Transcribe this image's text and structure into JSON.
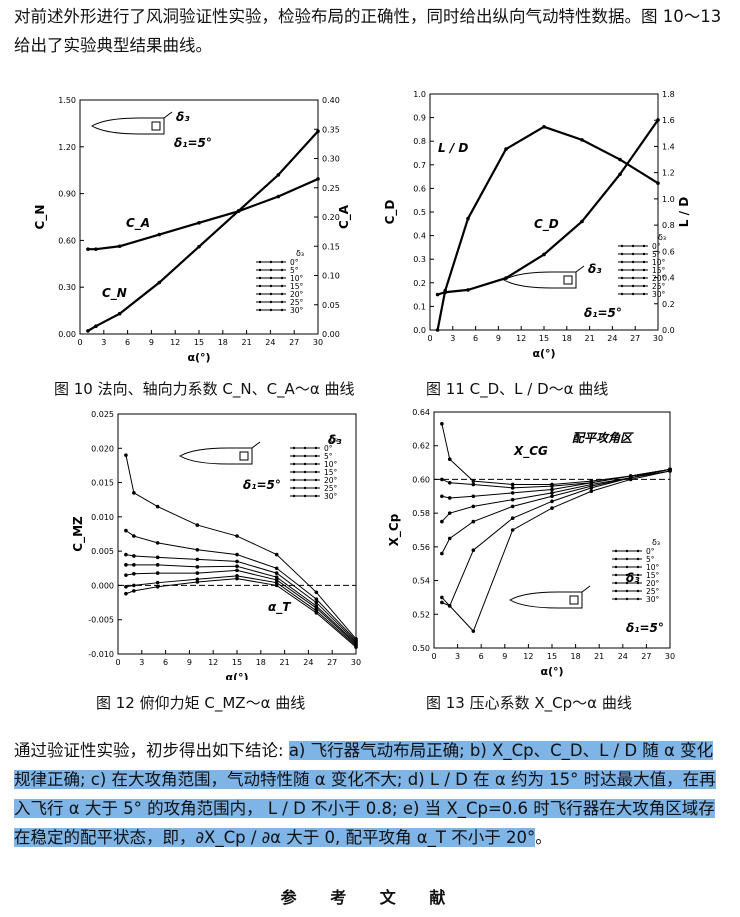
{
  "intro_paragraph": "对前述外形进行了风洞验证性实验，检验布局的正确性，同时给出纵向气动特性数据。图 10～13 给出了实验典型结果曲线。",
  "figures": [
    {
      "caption": "图 10  法向、轴向力系数 C_N、C_A～α 曲线",
      "chart_data": {
        "type": "line",
        "xlabel": "α(°)",
        "xticks": [
          "0",
          "3",
          "6",
          "9",
          "12",
          "15",
          "18",
          "21",
          "24",
          "27",
          "30"
        ],
        "xlim": [
          0,
          30
        ],
        "ylabel_left": "C_N",
        "ylim_left": [
          0,
          1.5
        ],
        "yticks_left": [
          "0.00",
          "0.30",
          "0.60",
          "0.90",
          "1.20",
          "1.50"
        ],
        "ylabel_right": "C_A",
        "ylim_right": [
          0,
          0.4
        ],
        "yticks_right": [
          "0.00",
          "0.05",
          "0.10",
          "0.15",
          "0.20",
          "0.25",
          "0.30",
          "0.35",
          "0.40"
        ],
        "annotations": [
          "C_A",
          "C_N",
          "δ₃",
          "δ₁=5°"
        ],
        "legend_title": "δ₃",
        "legend": [
          "0°",
          "5°",
          "10°",
          "15°",
          "20°",
          "25°",
          "30°"
        ],
        "series": [
          {
            "name": "C_N",
            "x": [
              1,
              2,
              5,
              10,
              15,
              20,
              25,
              30
            ],
            "y": [
              0.02,
              0.05,
              0.13,
              0.33,
              0.56,
              0.79,
              1.02,
              1.3
            ]
          },
          {
            "name": "C_A",
            "axis": "right",
            "x": [
              1,
              2,
              5,
              10,
              15,
              20,
              25,
              30
            ],
            "y": [
              0.145,
              0.145,
              0.15,
              0.17,
              0.19,
              0.21,
              0.235,
              0.265
            ]
          }
        ]
      }
    },
    {
      "caption": "图 11  C_D、L / D～α 曲线",
      "chart_data": {
        "type": "line",
        "xlabel": "α(°)",
        "xticks": [
          "0",
          "3",
          "6",
          "9",
          "12",
          "15",
          "18",
          "21",
          "24",
          "27",
          "30"
        ],
        "xlim": [
          0,
          30
        ],
        "ylabel_left": "C_D",
        "ylim_left": [
          0,
          1.0
        ],
        "yticks_left": [
          "0.0",
          "0.1",
          "0.2",
          "0.3",
          "0.4",
          "0.5",
          "0.6",
          "0.7",
          "0.8",
          "0.9",
          "1.0"
        ],
        "ylabel_right": "L / D",
        "ylim_right": [
          0,
          1.8
        ],
        "yticks_right": [
          "0.0",
          "0.2",
          "0.4",
          "0.6",
          "0.8",
          "1.0",
          "1.2",
          "1.4",
          "1.6",
          "1.8"
        ],
        "annotations": [
          "L / D",
          "C_D",
          "δ₃",
          "δ₁=5°"
        ],
        "legend_title": "δ₃",
        "legend": [
          "0°",
          "5°",
          "10°",
          "15°",
          "20°",
          "25°",
          "30°"
        ],
        "series": [
          {
            "name": "L / D",
            "axis": "right",
            "x": [
              1,
              2,
              5,
              10,
              15,
              20,
              25,
              30
            ],
            "y": [
              0.0,
              0.3,
              0.85,
              1.38,
              1.55,
              1.45,
              1.3,
              1.12
            ]
          },
          {
            "name": "C_D",
            "x": [
              1,
              2,
              5,
              10,
              15,
              20,
              25,
              30
            ],
            "y": [
              0.15,
              0.16,
              0.17,
              0.22,
              0.32,
              0.46,
              0.66,
              0.89
            ]
          }
        ]
      }
    },
    {
      "caption": "图 12  俯仰力矩 C_MZ～α 曲线",
      "chart_data": {
        "type": "line",
        "xlabel": "α(°)",
        "xticks": [
          "0",
          "3",
          "6",
          "9",
          "12",
          "15",
          "18",
          "21",
          "24",
          "27",
          "30"
        ],
        "xlim": [
          0,
          30
        ],
        "ylabel_left": "C_MZ",
        "ylim_left": [
          -0.01,
          0.025
        ],
        "yticks_left": [
          "-0.010",
          "-0.005",
          "0.000",
          "0.005",
          "0.010",
          "0.015",
          "0.020",
          "0.025"
        ],
        "annotations": [
          "α_T",
          "δ₃",
          "δ₁=5°"
        ],
        "legend_title": "δ₃",
        "legend": [
          "0°",
          "5°",
          "10°",
          "15°",
          "20°",
          "25°",
          "30°"
        ],
        "series": [
          {
            "name": "0°",
            "x": [
              1,
              2,
              5,
              10,
              15,
              20,
              25,
              30
            ],
            "y": [
              -0.0012,
              -0.0008,
              -0.0002,
              0.0005,
              0.001,
              0.0,
              -0.004,
              -0.009
            ]
          },
          {
            "name": "5°",
            "x": [
              1,
              2,
              5,
              10,
              15,
              20,
              25,
              30
            ],
            "y": [
              -0.0002,
              0.0,
              0.0004,
              0.0009,
              0.0014,
              0.0004,
              -0.0037,
              -0.0088
            ]
          },
          {
            "name": "10°",
            "x": [
              1,
              2,
              5,
              10,
              15,
              20,
              25,
              30
            ],
            "y": [
              0.0015,
              0.0017,
              0.0018,
              0.0018,
              0.0022,
              0.0008,
              -0.0033,
              -0.0086
            ]
          },
          {
            "name": "15°",
            "x": [
              1,
              2,
              5,
              10,
              15,
              20,
              25,
              30
            ],
            "y": [
              0.003,
              0.003,
              0.003,
              0.0027,
              0.0028,
              0.0012,
              -0.003,
              -0.0084
            ]
          },
          {
            "name": "20°",
            "x": [
              1,
              2,
              5,
              10,
              15,
              20,
              25,
              30
            ],
            "y": [
              0.0045,
              0.0043,
              0.0041,
              0.0038,
              0.0035,
              0.0018,
              -0.0025,
              -0.0082
            ]
          },
          {
            "name": "25°",
            "x": [
              1,
              2,
              5,
              10,
              15,
              20,
              25,
              30
            ],
            "y": [
              0.008,
              0.0072,
              0.0062,
              0.0052,
              0.0045,
              0.0025,
              -0.002,
              -0.008
            ]
          },
          {
            "name": "30°",
            "x": [
              1,
              2,
              5,
              10,
              15,
              20,
              25,
              30
            ],
            "y": [
              0.019,
              0.0135,
              0.0115,
              0.0088,
              0.0072,
              0.0045,
              -0.001,
              -0.0078
            ]
          }
        ]
      }
    },
    {
      "caption": "图 13  压心系数 X_Cp～α 曲线",
      "chart_data": {
        "type": "line",
        "xlabel": "α(°)",
        "xticks": [
          "0",
          "3",
          "6",
          "9",
          "12",
          "15",
          "18",
          "21",
          "24",
          "27",
          "30"
        ],
        "xlim": [
          0,
          30
        ],
        "ylabel_left": "X_Cp",
        "ylim_left": [
          0.5,
          0.64
        ],
        "yticks_left": [
          "0.50",
          "0.52",
          "0.54",
          "0.56",
          "0.58",
          "0.60",
          "0.62",
          "0.64"
        ],
        "annotations": [
          "X_CG",
          "配平攻角区",
          "δ₃",
          "δ₁=5°"
        ],
        "reference_line": {
          "name": "X_CG",
          "y": 0.6
        },
        "legend_title": "δ₃",
        "legend": [
          "0°",
          "5°",
          "10°",
          "15°",
          "20°",
          "25°",
          "30°"
        ],
        "series": [
          {
            "name": "0°",
            "x": [
              1,
              2,
              5,
              10,
              15,
              20,
              25,
              30
            ],
            "y": [
              0.633,
              0.612,
              0.599,
              0.597,
              0.597,
              0.599,
              0.602,
              0.606
            ]
          },
          {
            "name": "5°",
            "x": [
              1,
              2,
              5,
              10,
              15,
              20,
              25,
              30
            ],
            "y": [
              0.6,
              0.598,
              0.597,
              0.595,
              0.596,
              0.598,
              0.602,
              0.606
            ]
          },
          {
            "name": "10°",
            "x": [
              1,
              2,
              5,
              10,
              15,
              20,
              25,
              30
            ],
            "y": [
              0.59,
              0.589,
              0.59,
              0.592,
              0.594,
              0.598,
              0.602,
              0.606
            ]
          },
          {
            "name": "15°",
            "x": [
              1,
              2,
              5,
              10,
              15,
              20,
              25,
              30
            ],
            "y": [
              0.575,
              0.58,
              0.584,
              0.588,
              0.592,
              0.597,
              0.601,
              0.606
            ]
          },
          {
            "name": "20°",
            "x": [
              1,
              2,
              5,
              10,
              15,
              20,
              25,
              30
            ],
            "y": [
              0.556,
              0.565,
              0.575,
              0.584,
              0.59,
              0.596,
              0.601,
              0.606
            ]
          },
          {
            "name": "25°",
            "x": [
              1,
              2,
              5,
              10,
              15,
              20,
              25,
              30
            ],
            "y": [
              0.527,
              0.525,
              0.558,
              0.577,
              0.587,
              0.595,
              0.601,
              0.605
            ]
          },
          {
            "name": "30°",
            "x": [
              1,
              2,
              5,
              10,
              15,
              20,
              25,
              30
            ],
            "y": [
              0.53,
              0.525,
              0.51,
              0.57,
              0.583,
              0.593,
              0.6,
              0.605
            ]
          }
        ]
      }
    }
  ],
  "conclusion": {
    "lead": "通过验证性实验，初步得出如下结论: ",
    "highlighted": "a) 飞行器气动布局正确; b) X_Cp、C_D、L / D 随 α 变化规律正确; c) 在大攻角范围，气动特性随 α 变化不大; d) L / D 在 α 约为 15° 时达最大值，在再入飞行 α 大于 5° 的攻角范围内， L / D 不小于 0.8; e) 当 X_Cp=0.6 时飞行器在大攻角区域存在稳定的配平状态，即，∂X_Cp / ∂α 大于 0, 配平攻角 α_T 不小于 20°",
    "tail": "。"
  },
  "references_heading": "参 考 文 献"
}
